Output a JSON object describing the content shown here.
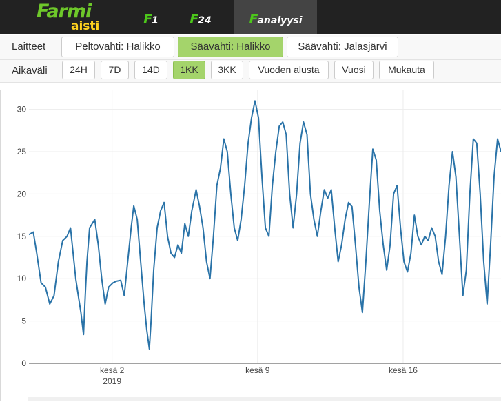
{
  "brand": {
    "line1": "Farmi",
    "line2": "aisti",
    "primary_color": "#6ec82a",
    "secondary_color": "#ffd21e"
  },
  "nav": {
    "tabs": [
      {
        "prefix": "F",
        "label": "1",
        "active": false
      },
      {
        "prefix": "F",
        "label": "24",
        "active": false
      },
      {
        "prefix": "F",
        "label": "analyysi",
        "active": true
      }
    ]
  },
  "devices": {
    "label": "Laitteet",
    "items": [
      {
        "label": "Peltovahti: Halikko",
        "active": false
      },
      {
        "label": "Säävahti: Halikko",
        "active": true
      },
      {
        "label": "Säävahti: Jalasjärvi",
        "active": false
      }
    ]
  },
  "range": {
    "label": "Aikaväli",
    "items": [
      {
        "label": "24H",
        "active": false
      },
      {
        "label": "7D",
        "active": false
      },
      {
        "label": "14D",
        "active": false
      },
      {
        "label": "1KK",
        "active": true
      },
      {
        "label": "3KK",
        "active": false
      },
      {
        "label": "Vuoden alusta",
        "active": false
      },
      {
        "label": "Vuosi",
        "active": false
      },
      {
        "label": "Mukauta",
        "active": false
      }
    ]
  },
  "chart_data": {
    "type": "line",
    "line_color": "#2a73a8",
    "grid": true,
    "x_domain": [
      "2019-05-29",
      "2019-06-20T17:00"
    ],
    "x_ticks": [
      {
        "date": "2019-06-02",
        "label": "kesä 2",
        "sublabel": "2019"
      },
      {
        "date": "2019-06-09",
        "label": "kesä 9",
        "sublabel": ""
      },
      {
        "date": "2019-06-16",
        "label": "kesä 16",
        "sublabel": ""
      }
    ],
    "ylim": [
      0,
      32
    ],
    "y_ticks": [
      0,
      5,
      10,
      15,
      20,
      25,
      30
    ],
    "series": [
      {
        "points": [
          [
            "2019-05-29 00:00",
            15.2
          ],
          [
            "2019-05-29 05:00",
            15.5
          ],
          [
            "2019-05-29 09:00",
            13.0
          ],
          [
            "2019-05-29 14:00",
            9.5
          ],
          [
            "2019-05-29 19:00",
            9.0
          ],
          [
            "2019-05-30 00:00",
            7.0
          ],
          [
            "2019-05-30 05:00",
            8.0
          ],
          [
            "2019-05-30 10:00",
            12.0
          ],
          [
            "2019-05-30 15:00",
            14.5
          ],
          [
            "2019-05-30 20:00",
            15.0
          ],
          [
            "2019-05-31 00:00",
            16.0
          ],
          [
            "2019-05-31 03:00",
            13.0
          ],
          [
            "2019-05-31 06:00",
            10.0
          ],
          [
            "2019-05-31 09:00",
            8.0
          ],
          [
            "2019-05-31 12:00",
            6.0
          ],
          [
            "2019-05-31 15:00",
            3.4
          ],
          [
            "2019-05-31 17:00",
            8.0
          ],
          [
            "2019-05-31 19:00",
            12.0
          ],
          [
            "2019-05-31 22:00",
            16.0
          ],
          [
            "2019-06-01 01:00",
            16.5
          ],
          [
            "2019-06-01 04:00",
            17.0
          ],
          [
            "2019-06-01 08:00",
            14.0
          ],
          [
            "2019-06-01 12:00",
            10.0
          ],
          [
            "2019-06-01 16:00",
            7.0
          ],
          [
            "2019-06-01 20:00",
            9.0
          ],
          [
            "2019-06-02 01:00",
            9.5
          ],
          [
            "2019-06-02 05:00",
            9.7
          ],
          [
            "2019-06-02 10:00",
            9.8
          ],
          [
            "2019-06-02 14:00",
            8.0
          ],
          [
            "2019-06-02 18:00",
            12.0
          ],
          [
            "2019-06-02 22:00",
            16.0
          ],
          [
            "2019-06-03 01:00",
            18.6
          ],
          [
            "2019-06-03 05:00",
            17.0
          ],
          [
            "2019-06-03 09:00",
            12.0
          ],
          [
            "2019-06-03 13:00",
            7.0
          ],
          [
            "2019-06-03 16:00",
            4.0
          ],
          [
            "2019-06-03 19:00",
            1.7
          ],
          [
            "2019-06-03 21:00",
            5.0
          ],
          [
            "2019-06-04 00:00",
            11.0
          ],
          [
            "2019-06-04 04:00",
            16.0
          ],
          [
            "2019-06-04 08:00",
            18.0
          ],
          [
            "2019-06-04 12:00",
            19.0
          ],
          [
            "2019-06-04 16:00",
            15.0
          ],
          [
            "2019-06-04 20:00",
            13.0
          ],
          [
            "2019-06-05 00:00",
            12.5
          ],
          [
            "2019-06-05 04:00",
            14.0
          ],
          [
            "2019-06-05 08:00",
            13.0
          ],
          [
            "2019-06-05 12:00",
            16.5
          ],
          [
            "2019-06-05 16:00",
            15.0
          ],
          [
            "2019-06-05 20:00",
            18.0
          ],
          [
            "2019-06-06 01:00",
            20.5
          ],
          [
            "2019-06-06 05:00",
            18.5
          ],
          [
            "2019-06-06 09:00",
            16.0
          ],
          [
            "2019-06-06 13:00",
            12.0
          ],
          [
            "2019-06-06 17:00",
            10.0
          ],
          [
            "2019-06-06 21:00",
            15.0
          ],
          [
            "2019-06-07 01:00",
            21.0
          ],
          [
            "2019-06-07 05:00",
            23.0
          ],
          [
            "2019-06-07 09:00",
            26.5
          ],
          [
            "2019-06-07 13:00",
            25.0
          ],
          [
            "2019-06-07 17:00",
            20.0
          ],
          [
            "2019-06-07 21:00",
            16.0
          ],
          [
            "2019-06-08 01:00",
            14.5
          ],
          [
            "2019-06-08 05:00",
            17.0
          ],
          [
            "2019-06-08 09:00",
            21.0
          ],
          [
            "2019-06-08 13:00",
            26.0
          ],
          [
            "2019-06-08 17:00",
            29.0
          ],
          [
            "2019-06-08 21:00",
            31.0
          ],
          [
            "2019-06-09 01:00",
            29.0
          ],
          [
            "2019-06-09 05:00",
            22.0
          ],
          [
            "2019-06-09 09:00",
            16.0
          ],
          [
            "2019-06-09 13:00",
            15.0
          ],
          [
            "2019-06-09 17:00",
            21.0
          ],
          [
            "2019-06-09 21:00",
            25.0
          ],
          [
            "2019-06-10 01:00",
            28.0
          ],
          [
            "2019-06-10 05:00",
            28.5
          ],
          [
            "2019-06-10 09:00",
            27.0
          ],
          [
            "2019-06-10 13:00",
            20.0
          ],
          [
            "2019-06-10 17:00",
            16.0
          ],
          [
            "2019-06-10 21:00",
            20.0
          ],
          [
            "2019-06-11 01:00",
            26.0
          ],
          [
            "2019-06-11 05:00",
            28.5
          ],
          [
            "2019-06-11 09:00",
            27.0
          ],
          [
            "2019-06-11 13:00",
            20.0
          ],
          [
            "2019-06-11 17:00",
            17.0
          ],
          [
            "2019-06-11 21:00",
            15.0
          ],
          [
            "2019-06-12 01:00",
            18.0
          ],
          [
            "2019-06-12 05:00",
            20.5
          ],
          [
            "2019-06-12 09:00",
            19.5
          ],
          [
            "2019-06-12 13:00",
            20.5
          ],
          [
            "2019-06-12 17:00",
            16.0
          ],
          [
            "2019-06-12 21:00",
            12.0
          ],
          [
            "2019-06-13 01:00",
            14.0
          ],
          [
            "2019-06-13 05:00",
            17.0
          ],
          [
            "2019-06-13 09:00",
            19.0
          ],
          [
            "2019-06-13 13:00",
            18.5
          ],
          [
            "2019-06-13 17:00",
            14.0
          ],
          [
            "2019-06-13 21:00",
            9.0
          ],
          [
            "2019-06-14 01:00",
            6.0
          ],
          [
            "2019-06-14 05:00",
            12.0
          ],
          [
            "2019-06-14 09:00",
            19.0
          ],
          [
            "2019-06-14 13:00",
            25.3
          ],
          [
            "2019-06-14 17:00",
            24.0
          ],
          [
            "2019-06-14 21:00",
            18.0
          ],
          [
            "2019-06-15 01:00",
            14.0
          ],
          [
            "2019-06-15 05:00",
            11.0
          ],
          [
            "2019-06-15 09:00",
            14.0
          ],
          [
            "2019-06-15 13:00",
            20.0
          ],
          [
            "2019-06-15 17:00",
            21.0
          ],
          [
            "2019-06-15 21:00",
            16.0
          ],
          [
            "2019-06-16 01:00",
            12.0
          ],
          [
            "2019-06-16 05:00",
            10.8
          ],
          [
            "2019-06-16 09:00",
            13.0
          ],
          [
            "2019-06-16 13:00",
            17.5
          ],
          [
            "2019-06-16 17:00",
            15.0
          ],
          [
            "2019-06-16 21:00",
            14.0
          ],
          [
            "2019-06-17 01:00",
            15.0
          ],
          [
            "2019-06-17 05:00",
            14.5
          ],
          [
            "2019-06-17 09:00",
            16.0
          ],
          [
            "2019-06-17 13:00",
            15.0
          ],
          [
            "2019-06-17 17:00",
            12.0
          ],
          [
            "2019-06-17 21:00",
            10.5
          ],
          [
            "2019-06-18 01:00",
            15.0
          ],
          [
            "2019-06-18 05:00",
            21.0
          ],
          [
            "2019-06-18 09:00",
            25.0
          ],
          [
            "2019-06-18 13:00",
            22.0
          ],
          [
            "2019-06-18 17:00",
            15.0
          ],
          [
            "2019-06-18 21:00",
            8.0
          ],
          [
            "2019-06-19 01:00",
            11.0
          ],
          [
            "2019-06-19 05:00",
            20.0
          ],
          [
            "2019-06-19 09:00",
            26.5
          ],
          [
            "2019-06-19 13:00",
            26.0
          ],
          [
            "2019-06-19 17:00",
            20.0
          ],
          [
            "2019-06-19 21:00",
            12.0
          ],
          [
            "2019-06-20 01:00",
            7.0
          ],
          [
            "2019-06-20 05:00",
            14.0
          ],
          [
            "2019-06-20 09:00",
            22.0
          ],
          [
            "2019-06-20 13:00",
            26.5
          ],
          [
            "2019-06-20 17:00",
            25.0
          ]
        ]
      }
    ]
  }
}
